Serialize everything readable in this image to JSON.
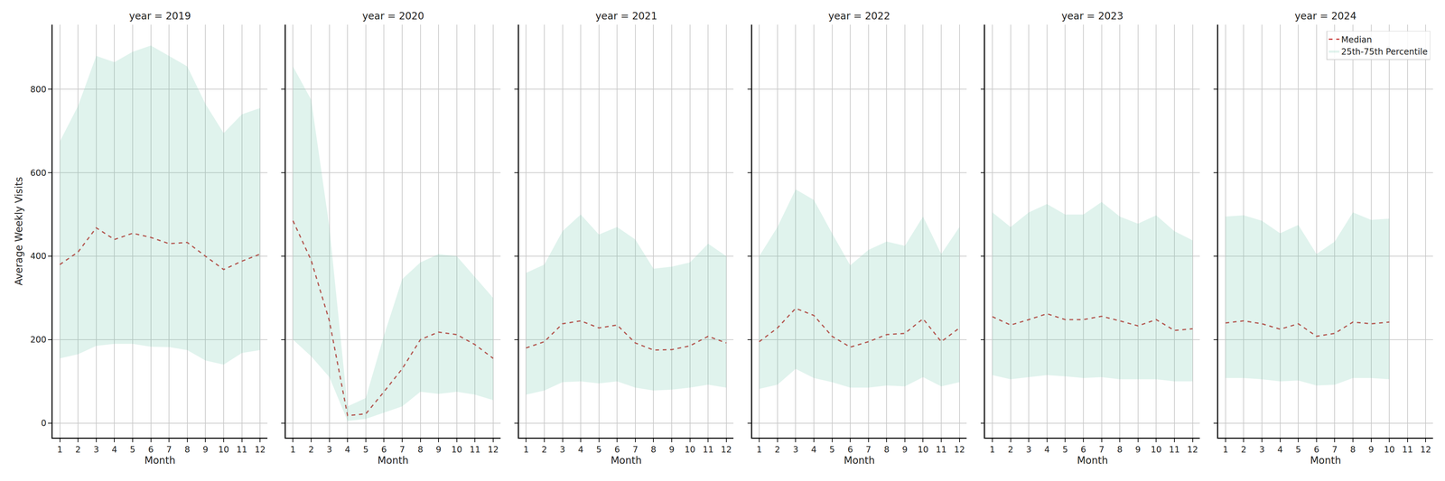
{
  "chart_data": [
    {
      "type": "line",
      "title": "year = 2019",
      "xlabel": "Month",
      "ylabel": "Average Weekly Visits",
      "x": [
        1,
        2,
        3,
        4,
        5,
        6,
        7,
        8,
        9,
        10,
        11,
        12
      ],
      "xlim": [
        0.6,
        12.4
      ],
      "xticks": [
        1,
        2,
        3,
        4,
        5,
        6,
        7,
        8,
        9,
        10,
        11,
        12
      ],
      "ylim": [
        -35,
        955
      ],
      "yticks": [
        0,
        200,
        400,
        600,
        800
      ],
      "grid": true,
      "series": [
        {
          "name": "Median",
          "color": "#c9403f",
          "line_style": "dashed",
          "values": [
            380,
            410,
            468,
            440,
            455,
            445,
            430,
            433,
            400,
            368,
            388,
            405
          ]
        },
        {
          "name": "25th-75th Percentile",
          "type": "area",
          "color": "#66c2a5",
          "low": [
            155,
            165,
            185,
            190,
            190,
            183,
            182,
            175,
            150,
            140,
            168,
            175
          ],
          "high": [
            675,
            760,
            880,
            865,
            890,
            905,
            880,
            855,
            765,
            695,
            740,
            755
          ]
        }
      ]
    },
    {
      "type": "line",
      "title": "year = 2020",
      "xlabel": "Month",
      "tick_labels": "x",
      "x": [
        1,
        2,
        3,
        4,
        5,
        6,
        7,
        8,
        9,
        10,
        11,
        12
      ],
      "xlim": [
        0.6,
        12.4
      ],
      "xticks": [
        1,
        2,
        3,
        4,
        5,
        6,
        7,
        8,
        9,
        10,
        11,
        12
      ],
      "ylim": [
        -35,
        955
      ],
      "yticks": [
        0,
        200,
        400,
        600,
        800
      ],
      "grid": true,
      "series": [
        {
          "name": "Median",
          "color": "#c9403f",
          "line_style": "dashed",
          "values": [
            485,
            390,
            245,
            18,
            22,
            75,
            130,
            200,
            218,
            212,
            188,
            155
          ]
        },
        {
          "name": "25th-75th Percentile",
          "type": "area",
          "color": "#66c2a5",
          "low": [
            200,
            160,
            110,
            5,
            10,
            25,
            40,
            75,
            70,
            75,
            68,
            55
          ],
          "high": [
            855,
            775,
            470,
            40,
            60,
            210,
            345,
            385,
            405,
            400,
            350,
            300
          ]
        }
      ]
    },
    {
      "type": "line",
      "title": "year = 2021",
      "xlabel": "Month",
      "tick_labels": "x",
      "x": [
        1,
        2,
        3,
        4,
        5,
        6,
        7,
        8,
        9,
        10,
        11,
        12
      ],
      "xlim": [
        0.6,
        12.4
      ],
      "xticks": [
        1,
        2,
        3,
        4,
        5,
        6,
        7,
        8,
        9,
        10,
        11,
        12
      ],
      "ylim": [
        -35,
        955
      ],
      "yticks": [
        0,
        200,
        400,
        600,
        800
      ],
      "grid": true,
      "series": [
        {
          "name": "Median",
          "color": "#c9403f",
          "line_style": "dashed",
          "values": [
            180,
            195,
            238,
            245,
            228,
            235,
            192,
            175,
            176,
            185,
            208,
            192
          ]
        },
        {
          "name": "25th-75th Percentile",
          "type": "area",
          "color": "#66c2a5",
          "low": [
            68,
            78,
            98,
            100,
            95,
            100,
            85,
            78,
            80,
            85,
            92,
            85
          ],
          "high": [
            360,
            380,
            460,
            500,
            452,
            470,
            440,
            370,
            375,
            385,
            430,
            400
          ]
        }
      ]
    },
    {
      "type": "line",
      "title": "year = 2022",
      "xlabel": "Month",
      "tick_labels": "x",
      "x": [
        1,
        2,
        3,
        4,
        5,
        6,
        7,
        8,
        9,
        10,
        11,
        12
      ],
      "xlim": [
        0.6,
        12.4
      ],
      "xticks": [
        1,
        2,
        3,
        4,
        5,
        6,
        7,
        8,
        9,
        10,
        11,
        12
      ],
      "ylim": [
        -35,
        955
      ],
      "yticks": [
        0,
        200,
        400,
        600,
        800
      ],
      "grid": true,
      "series": [
        {
          "name": "Median",
          "color": "#c9403f",
          "line_style": "dashed",
          "values": [
            195,
            228,
            275,
            258,
            208,
            182,
            195,
            212,
            215,
            250,
            195,
            228
          ]
        },
        {
          "name": "25th-75th Percentile",
          "type": "area",
          "color": "#66c2a5",
          "low": [
            82,
            92,
            130,
            108,
            98,
            85,
            85,
            90,
            88,
            110,
            88,
            98
          ],
          "high": [
            400,
            470,
            560,
            535,
            455,
            378,
            415,
            435,
            425,
            495,
            405,
            470
          ]
        }
      ]
    },
    {
      "type": "line",
      "title": "year = 2023",
      "xlabel": "Month",
      "tick_labels": "x",
      "x": [
        1,
        2,
        3,
        4,
        5,
        6,
        7,
        8,
        9,
        10,
        11,
        12
      ],
      "xlim": [
        0.6,
        12.4
      ],
      "xticks": [
        1,
        2,
        3,
        4,
        5,
        6,
        7,
        8,
        9,
        10,
        11,
        12
      ],
      "ylim": [
        -35,
        955
      ],
      "yticks": [
        0,
        200,
        400,
        600,
        800
      ],
      "grid": true,
      "series": [
        {
          "name": "Median",
          "color": "#c9403f",
          "line_style": "dashed",
          "values": [
            255,
            235,
            248,
            262,
            248,
            248,
            256,
            245,
            233,
            248,
            222,
            226
          ]
        },
        {
          "name": "25th-75th Percentile",
          "type": "area",
          "color": "#66c2a5",
          "low": [
            115,
            105,
            110,
            115,
            112,
            108,
            110,
            105,
            105,
            105,
            100,
            100
          ],
          "high": [
            505,
            470,
            505,
            525,
            500,
            500,
            530,
            495,
            478,
            498,
            460,
            438
          ]
        }
      ]
    },
    {
      "type": "line",
      "title": "year = 2024",
      "xlabel": "Month",
      "tick_labels": "x",
      "legend": "upper right",
      "x": [
        1,
        2,
        3,
        4,
        5,
        6,
        7,
        8,
        9,
        10
      ],
      "xlim": [
        0.6,
        12.4
      ],
      "xticks": [
        1,
        2,
        3,
        4,
        5,
        6,
        7,
        8,
        9,
        10,
        11,
        12
      ],
      "ylim": [
        -35,
        955
      ],
      "yticks": [
        0,
        200,
        400,
        600,
        800
      ],
      "grid": true,
      "series": [
        {
          "name": "Median",
          "color": "#c9403f",
          "line_style": "dashed",
          "values": [
            240,
            245,
            238,
            225,
            238,
            208,
            215,
            242,
            238,
            242
          ]
        },
        {
          "name": "25th-75th Percentile",
          "type": "area",
          "color": "#66c2a5",
          "low": [
            108,
            108,
            105,
            100,
            102,
            90,
            92,
            108,
            108,
            105
          ],
          "high": [
            495,
            498,
            485,
            455,
            475,
            405,
            435,
            505,
            487,
            490
          ]
        }
      ]
    }
  ]
}
